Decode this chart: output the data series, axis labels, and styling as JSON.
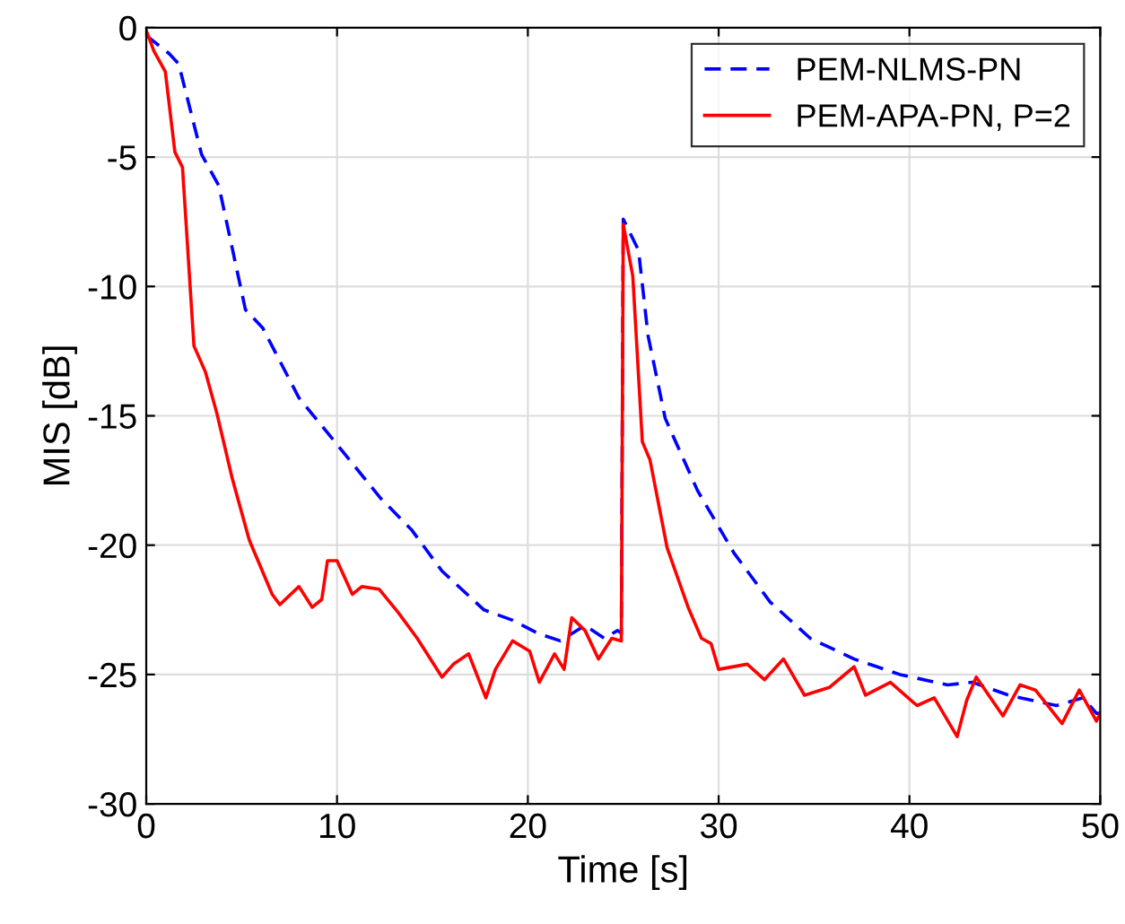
{
  "chart_data": {
    "type": "line",
    "xlabel": "Time [s]",
    "ylabel": "MIS [dB]",
    "xlim": [
      0,
      50
    ],
    "ylim": [
      -30,
      0
    ],
    "xticks": [
      0,
      10,
      20,
      30,
      40,
      50
    ],
    "yticks": [
      -30,
      -25,
      -20,
      -15,
      -10,
      -5,
      0
    ],
    "grid": true,
    "legend": "top right",
    "series": [
      {
        "name": "PEM-NLMS-PN",
        "color": "#0000ff",
        "line_style": "dashed",
        "x": [
          0,
          1.2,
          1.7,
          2.9,
          3.8,
          5.2,
          6.1,
          8.0,
          10.1,
          12.3,
          13.9,
          15.5,
          17.7,
          19.2,
          20.5,
          21.7,
          23.0,
          24.0,
          24.7,
          24.9,
          25.0,
          25.8,
          26.3,
          27.2,
          28.9,
          30.8,
          32.7,
          34.8,
          37.1,
          39.5,
          42.0,
          43.3,
          45.2,
          47.7,
          49.1,
          49.8,
          50
        ],
        "values": [
          -0.3,
          -1.0,
          -1.4,
          -4.9,
          -6.1,
          -10.9,
          -11.6,
          -14.3,
          -16.2,
          -18.2,
          -19.4,
          -21.0,
          -22.5,
          -22.9,
          -23.4,
          -23.7,
          -23.1,
          -23.6,
          -23.3,
          -23.4,
          -7.4,
          -8.6,
          -11.9,
          -15.1,
          -17.9,
          -20.3,
          -22.2,
          -23.6,
          -24.4,
          -25.0,
          -25.4,
          -25.3,
          -25.8,
          -26.2,
          -25.9,
          -26.5,
          -26.5
        ]
      },
      {
        "name": "PEM-APA-PN, P=2",
        "color": "#ff0000",
        "line_style": "solid",
        "x": [
          0,
          0.4,
          1.0,
          1.5,
          1.9,
          2.5,
          3.1,
          3.7,
          4.5,
          5.4,
          6.6,
          7.0,
          8.0,
          8.7,
          9.2,
          9.5,
          10.0,
          10.8,
          11.3,
          12.2,
          13.2,
          14.2,
          15.5,
          16.1,
          16.9,
          17.8,
          18.3,
          19.2,
          20.1,
          20.6,
          21.4,
          21.9,
          22.3,
          23.0,
          23.7,
          24.4,
          24.9,
          25.0,
          25.5,
          26.0,
          26.4,
          27.3,
          28.4,
          29.1,
          29.6,
          30.0,
          31.5,
          32.4,
          33.4,
          34.5,
          35.8,
          37.1,
          37.7,
          39.0,
          40.4,
          41.3,
          42.5,
          43.0,
          43.5,
          44.9,
          45.8,
          46.6,
          48.0,
          48.9,
          49.8,
          50
        ],
        "values": [
          -0.1,
          -0.9,
          -1.7,
          -4.8,
          -5.4,
          -12.3,
          -13.3,
          -14.9,
          -17.4,
          -19.8,
          -21.9,
          -22.3,
          -21.6,
          -22.4,
          -22.1,
          -20.6,
          -20.6,
          -21.9,
          -21.6,
          -21.7,
          -22.6,
          -23.6,
          -25.1,
          -24.6,
          -24.2,
          -25.9,
          -24.8,
          -23.7,
          -24.1,
          -25.3,
          -24.2,
          -24.8,
          -22.8,
          -23.3,
          -24.4,
          -23.6,
          -23.7,
          -7.6,
          -9.6,
          -16.0,
          -16.7,
          -20.1,
          -22.4,
          -23.6,
          -23.8,
          -24.8,
          -24.6,
          -25.2,
          -24.4,
          -25.8,
          -25.5,
          -24.7,
          -25.8,
          -25.3,
          -26.2,
          -25.9,
          -27.4,
          -26.0,
          -25.1,
          -26.6,
          -25.4,
          -25.6,
          -26.9,
          -25.6,
          -26.8,
          -26.5
        ]
      }
    ]
  }
}
